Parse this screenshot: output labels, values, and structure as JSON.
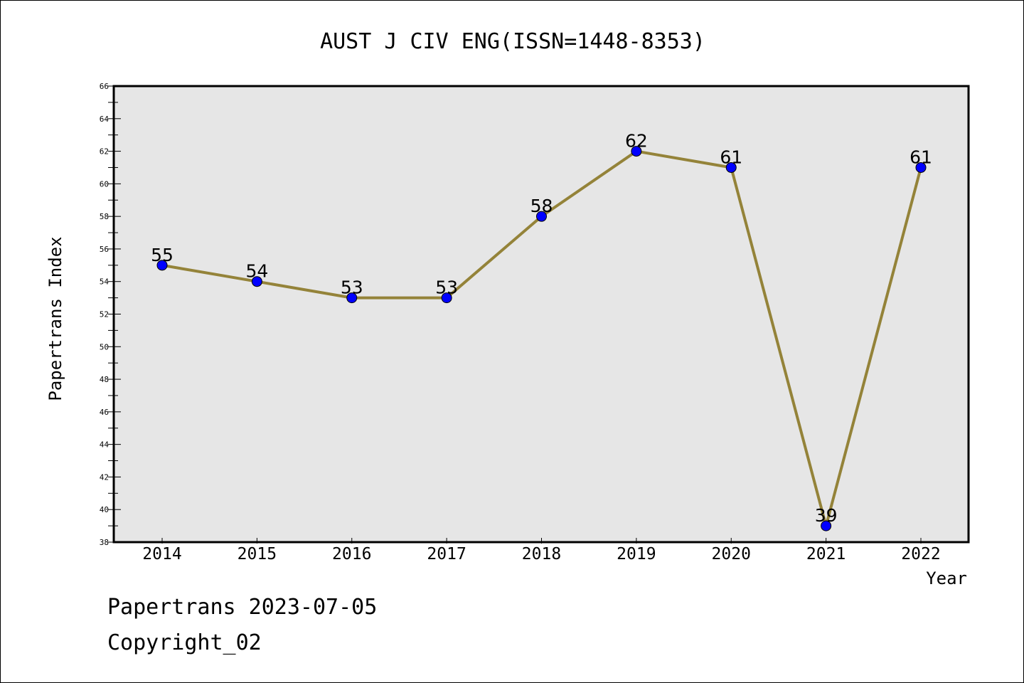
{
  "chart_data": {
    "type": "line",
    "title": "AUST J CIV ENG(ISSN=1448-8353)",
    "xlabel": "Year",
    "ylabel": "Papertrans Index",
    "categories": [
      "2014",
      "2015",
      "2016",
      "2017",
      "2018",
      "2019",
      "2020",
      "2021",
      "2022"
    ],
    "series": [
      {
        "values": [
          55,
          54,
          53,
          53,
          58,
          62,
          61,
          39,
          61
        ]
      }
    ],
    "data_labels": [
      "55",
      "54",
      "53",
      "53",
      "58",
      "62",
      "61",
      "39",
      "61"
    ],
    "ylim": [
      38,
      66
    ],
    "y_ticks": [
      "38",
      "40",
      "42",
      "44",
      "46",
      "48",
      "50",
      "52",
      "54",
      "56",
      "58",
      "60",
      "62",
      "64",
      "66"
    ],
    "grid": false,
    "plot_background": "#e6e6e6",
    "line_color": "#948339",
    "marker_color": "#0000ff"
  },
  "footer": {
    "line1": "Papertrans 2023-07-05",
    "line2": "Copyright_02"
  }
}
